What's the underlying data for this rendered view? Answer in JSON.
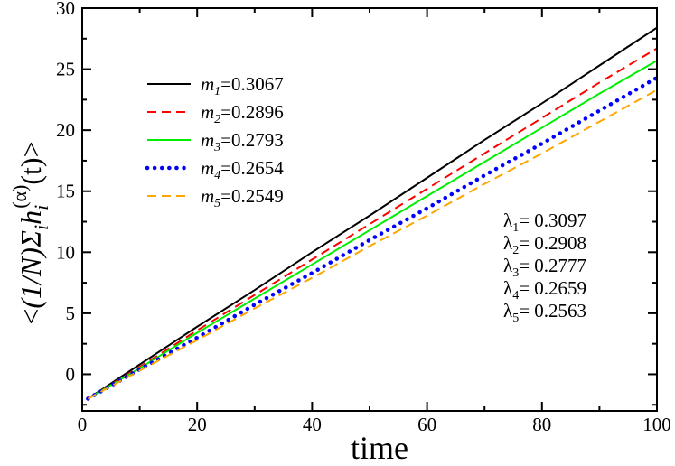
{
  "chart_data": {
    "type": "line",
    "xlabel": "time",
    "ylabel": "<(1/N)Σ_i h_i^(α)(t)>",
    "ylabel_parts": {
      "open": "<",
      "prefix": "(1/N)Σ",
      "sum_sub": "i",
      "h": "h",
      "h_sub": "i",
      "h_sup": "(α)",
      "arg": "(t)",
      "close": ">"
    },
    "xlim": [
      0,
      100
    ],
    "ylim": [
      -3,
      30
    ],
    "xticks": [
      0,
      20,
      40,
      60,
      80,
      100
    ],
    "yticks": [
      0,
      5,
      10,
      15,
      20,
      25,
      30
    ],
    "grid": false,
    "legend_position": "top-left",
    "series": [
      {
        "name": "m1=0.3067",
        "sym": "m",
        "sub": "1",
        "value": "=0.3067",
        "color": "#000000",
        "style": "solid",
        "x": [
          1,
          10,
          20,
          30,
          40,
          50,
          60,
          70,
          80,
          90,
          100
        ],
        "y": [
          -2.0,
          0.8,
          3.9,
          6.9,
          10.0,
          13.0,
          16.1,
          19.2,
          22.2,
          25.3,
          28.4
        ]
      },
      {
        "name": "m2=0.2896",
        "sym": "m",
        "sub": "2",
        "value": "=0.2896",
        "color": "#ff0000",
        "style": "dashed",
        "x": [
          1,
          10,
          20,
          30,
          40,
          50,
          60,
          70,
          80,
          90,
          100
        ],
        "y": [
          -2.0,
          0.6,
          3.6,
          6.5,
          9.4,
          12.3,
          15.2,
          18.1,
          21.0,
          23.9,
          26.7
        ]
      },
      {
        "name": "m3=0.2793",
        "sym": "m",
        "sub": "3",
        "value": "=0.2793",
        "color": "#00ee00",
        "style": "solid",
        "x": [
          1,
          10,
          20,
          30,
          40,
          50,
          60,
          70,
          80,
          90,
          100
        ],
        "y": [
          -2.0,
          0.5,
          3.4,
          6.2,
          9.0,
          11.8,
          14.6,
          17.4,
          20.2,
          23.0,
          25.7
        ]
      },
      {
        "name": "m4=0.2654",
        "sym": "m",
        "sub": "4",
        "value": "=0.2654",
        "color": "#0000ff",
        "style": "dotted",
        "x": [
          1,
          10,
          20,
          30,
          40,
          50,
          60,
          70,
          80,
          90,
          100
        ],
        "y": [
          -2.0,
          0.4,
          3.0,
          5.7,
          8.3,
          11.0,
          13.6,
          16.3,
          18.9,
          21.6,
          24.3
        ]
      },
      {
        "name": "m5=0.2549",
        "sym": "m",
        "sub": "5",
        "value": "=0.2549",
        "color": "#ffa500",
        "style": "dashed",
        "x": [
          1,
          10,
          20,
          30,
          40,
          50,
          60,
          70,
          80,
          90,
          100
        ],
        "y": [
          -2.0,
          0.3,
          2.8,
          5.4,
          7.9,
          10.5,
          13.0,
          15.6,
          18.1,
          20.7,
          23.3
        ]
      }
    ],
    "annotations": [
      {
        "sym": "λ",
        "sub": "1",
        "value": "= 0.3097"
      },
      {
        "sym": "λ",
        "sub": "2",
        "value": "= 0.2908"
      },
      {
        "sym": "λ",
        "sub": "3",
        "value": "= 0.2777"
      },
      {
        "sym": "λ",
        "sub": "4",
        "value": "= 0.2659"
      },
      {
        "sym": "λ",
        "sub": "5",
        "value": "= 0.2563"
      }
    ]
  }
}
